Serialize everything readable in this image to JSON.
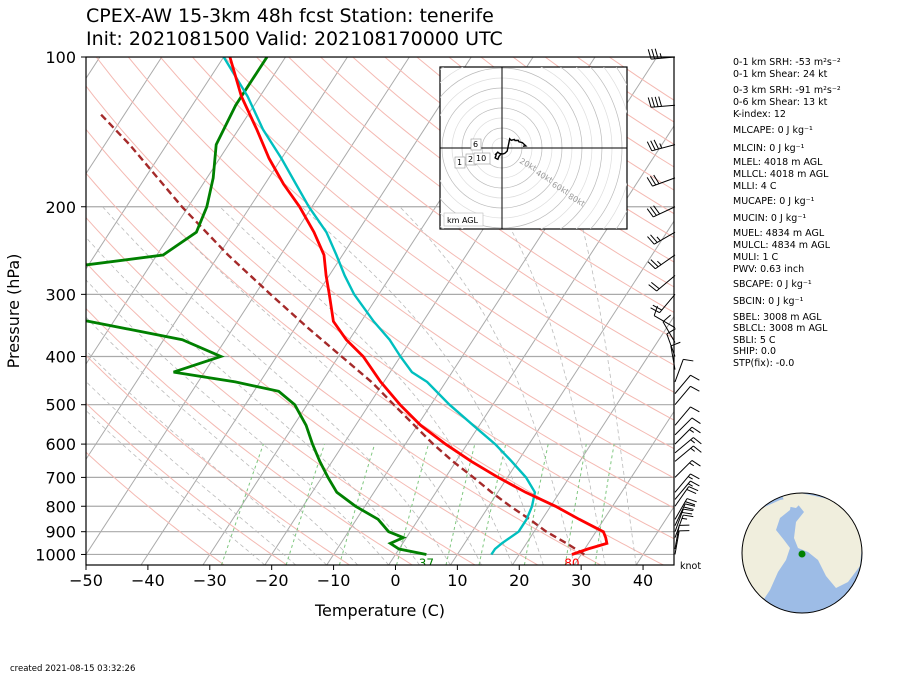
{
  "header": {
    "line1": "CPEX-AW 15-3km  48h fcst  Station: tenerife",
    "line2": "Init: 2021081500  Valid: 202108170000 UTC"
  },
  "footer": {
    "created": "created 2021-08-15 03:32:26"
  },
  "colors": {
    "temperature": "#ff0000",
    "dewpoint": "#008000",
    "wetbulb": "#00bfbf",
    "parcel": "#a52a2a",
    "isotherm": "#aaaaaa",
    "dry_adiabat": "#f4b9b2",
    "moist_adiabat": "#bbbbbb",
    "mixing_ratio": "#7fc77f",
    "isobar": "#aaaaaa",
    "globe_land": "#f0eedd",
    "globe_ocean": "#9dbce6",
    "station_marker": "#008000"
  },
  "chart_data": {
    "type": "skew-t",
    "xlabel": "Temperature (C)",
    "ylabel": "Pressure (hPa)",
    "xlim": [
      -50,
      45
    ],
    "ylim": [
      1050,
      100
    ],
    "x_ticks": [
      -50,
      -40,
      -30,
      -20,
      -10,
      0,
      10,
      20,
      30,
      40
    ],
    "y_ticks": [
      100,
      200,
      300,
      400,
      500,
      600,
      700,
      800,
      900,
      1000
    ],
    "y_scale": "log",
    "surface_dewpoint_label": "37",
    "surface_temperature_label": "80",
    "temperature": [
      [
        1000,
        28.5
      ],
      [
        975,
        30.5
      ],
      [
        950,
        33
      ],
      [
        925,
        32.2
      ],
      [
        900,
        31.2
      ],
      [
        850,
        26
      ],
      [
        800,
        20.8
      ],
      [
        750,
        14.5
      ],
      [
        700,
        8.5
      ],
      [
        650,
        2.5
      ],
      [
        600,
        -3.5
      ],
      [
        550,
        -9.5
      ],
      [
        500,
        -15
      ],
      [
        450,
        -20.5
      ],
      [
        400,
        -26
      ],
      [
        370,
        -30.5
      ],
      [
        340,
        -34.5
      ],
      [
        300,
        -38
      ],
      [
        275,
        -40.5
      ],
      [
        250,
        -43
      ],
      [
        225,
        -47
      ],
      [
        200,
        -52
      ],
      [
        180,
        -57
      ],
      [
        160,
        -62
      ],
      [
        140,
        -67
      ],
      [
        120,
        -73
      ],
      [
        100,
        -79
      ]
    ],
    "wetbulb": [
      [
        1000,
        15.5
      ],
      [
        975,
        15.5
      ],
      [
        950,
        16
      ],
      [
        900,
        17.5
      ],
      [
        850,
        17.5
      ],
      [
        800,
        17
      ],
      [
        750,
        16
      ],
      [
        700,
        13
      ],
      [
        650,
        9
      ],
      [
        600,
        4.5
      ],
      [
        550,
        -1
      ],
      [
        500,
        -7
      ],
      [
        450,
        -13
      ],
      [
        430,
        -16.5
      ],
      [
        400,
        -20
      ],
      [
        370,
        -23.5
      ],
      [
        340,
        -28
      ],
      [
        300,
        -34
      ],
      [
        275,
        -37.5
      ],
      [
        250,
        -41
      ],
      [
        225,
        -45
      ],
      [
        200,
        -50.5
      ],
      [
        180,
        -55
      ],
      [
        160,
        -60
      ],
      [
        140,
        -66
      ],
      [
        120,
        -72
      ],
      [
        100,
        -80
      ]
    ],
    "dewpoint": [
      [
        1000,
        5
      ],
      [
        975,
        0
      ],
      [
        950,
        -2
      ],
      [
        925,
        -0.5
      ],
      [
        900,
        -3.5
      ],
      [
        850,
        -6.5
      ],
      [
        800,
        -11.5
      ],
      [
        750,
        -16
      ],
      [
        700,
        -19
      ],
      [
        650,
        -22
      ],
      [
        600,
        -25
      ],
      [
        550,
        -28
      ],
      [
        500,
        -32
      ],
      [
        470,
        -36
      ],
      [
        450,
        -44
      ],
      [
        430,
        -55
      ],
      [
        400,
        -49
      ],
      [
        370,
        -57
      ],
      [
        330,
        -80
      ],
      [
        300,
        -98
      ],
      [
        270,
        -88
      ],
      [
        250,
        -69
      ],
      [
        225,
        -66
      ],
      [
        200,
        -67
      ],
      [
        175,
        -69
      ],
      [
        150,
        -72
      ],
      [
        125,
        -73
      ],
      [
        100,
        -73
      ]
    ],
    "parcel": [
      [
        1000,
        30.5
      ],
      [
        950,
        26.5
      ],
      [
        900,
        22
      ],
      [
        850,
        18
      ],
      [
        800,
        13.5
      ],
      [
        750,
        9
      ],
      [
        700,
        4.5
      ],
      [
        650,
        -0.5
      ],
      [
        600,
        -5.5
      ],
      [
        550,
        -10.5
      ],
      [
        500,
        -16
      ],
      [
        470,
        -19.5
      ],
      [
        450,
        -22
      ],
      [
        400,
        -29.5
      ],
      [
        350,
        -38
      ],
      [
        300,
        -47.5
      ],
      [
        250,
        -58.5
      ],
      [
        200,
        -71
      ],
      [
        150,
        -86
      ],
      [
        130,
        -94
      ]
    ],
    "wind_barbs": [
      {
        "p": 100,
        "dir": 265,
        "spd": 35
      },
      {
        "p": 125,
        "dir": 265,
        "spd": 40
      },
      {
        "p": 150,
        "dir": 255,
        "spd": 35
      },
      {
        "p": 175,
        "dir": 250,
        "spd": 30
      },
      {
        "p": 200,
        "dir": 245,
        "spd": 30
      },
      {
        "p": 225,
        "dir": 240,
        "spd": 25
      },
      {
        "p": 250,
        "dir": 235,
        "spd": 25
      },
      {
        "p": 275,
        "dir": 230,
        "spd": 20
      },
      {
        "p": 300,
        "dir": 220,
        "spd": 20
      },
      {
        "p": 350,
        "dir": 300,
        "spd": 10
      },
      {
        "p": 375,
        "dir": 330,
        "spd": 10
      },
      {
        "p": 400,
        "dir": 340,
        "spd": 10
      },
      {
        "p": 425,
        "dir": 350,
        "spd": 10
      },
      {
        "p": 450,
        "dir": 20,
        "spd": 10
      },
      {
        "p": 475,
        "dir": 40,
        "spd": 10
      },
      {
        "p": 500,
        "dir": 40,
        "spd": 10
      },
      {
        "p": 550,
        "dir": 40,
        "spd": 10
      },
      {
        "p": 575,
        "dir": 45,
        "spd": 10
      },
      {
        "p": 600,
        "dir": 45,
        "spd": 15
      },
      {
        "p": 625,
        "dir": 50,
        "spd": 15
      },
      {
        "p": 650,
        "dir": 50,
        "spd": 15
      },
      {
        "p": 700,
        "dir": 45,
        "spd": 15
      },
      {
        "p": 750,
        "dir": 40,
        "spd": 15
      },
      {
        "p": 775,
        "dir": 40,
        "spd": 15
      },
      {
        "p": 800,
        "dir": 35,
        "spd": 20
      },
      {
        "p": 850,
        "dir": 30,
        "spd": 20
      },
      {
        "p": 875,
        "dir": 25,
        "spd": 20
      },
      {
        "p": 900,
        "dir": 20,
        "spd": 20
      },
      {
        "p": 925,
        "dir": 20,
        "spd": 15
      },
      {
        "p": 975,
        "dir": 10,
        "spd": 10
      },
      {
        "p": 1000,
        "dir": 10,
        "spd": 10
      }
    ],
    "barb_unit_label": "knot",
    "hodograph": {
      "ring_labels": [
        "20kt",
        "40kt",
        "60kt",
        "80kt"
      ],
      "legend": "km AGL",
      "height_labels": [
        "1",
        "2",
        "6",
        "10"
      ]
    },
    "indices": [
      "0-1 km SRH: -53 m²s⁻²",
      "0-1 km Shear: 24 kt",
      "0-3 km SRH: -91 m²s⁻²",
      "0-6 km Shear: 13 kt",
      "K-index: 12",
      "MLCAPE: 0 J kg⁻¹",
      "MLCIN: 0 J kg⁻¹",
      "MLEL: 4018 m AGL",
      "MLLCL: 4018 m AGL",
      "MLLI: 4 C",
      "MUCAPE: 0 J kg⁻¹",
      "MUCIN: 0 J kg⁻¹",
      "MUEL: 4834 m AGL",
      "MULCL: 4834 m AGL",
      "MULI: 1 C",
      "PWV: 0.63 inch",
      "SBCAPE: 0 J kg⁻¹",
      "SBCIN: 0 J kg⁻¹",
      "SBEL: 3008 m AGL",
      "SBLCL: 3008 m AGL",
      "SBLI: 5 C",
      "SHIP: 0.0",
      "STP(fix): -0.0"
    ]
  }
}
